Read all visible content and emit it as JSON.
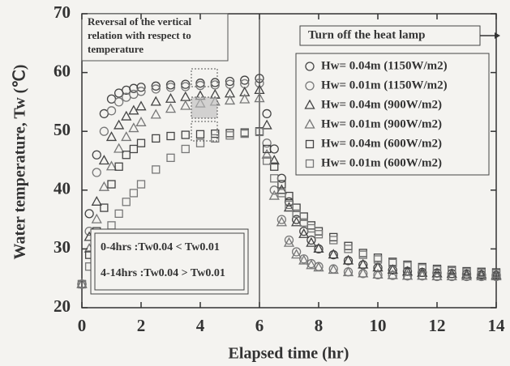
{
  "chart_data": {
    "type": "scatter",
    "xlabel": "Elapsed time (hr)",
    "ylabel": "Water temperature, Tw (℃)",
    "annotations": [
      "Reversal of the vertical",
      "relation with respect to",
      "temperature",
      "Turn off the heat lamp",
      "0-4hrs :Tw0.04 < Tw0.01",
      "4-14hrs :Tw0.04 > Tw0.01"
    ],
    "xlim": [
      0,
      14
    ],
    "xticks": [
      0,
      2,
      4,
      6,
      8,
      10,
      12,
      14
    ],
    "ylim": [
      20,
      70
    ],
    "yticks": [
      20,
      30,
      40,
      50,
      60,
      70
    ],
    "grid": false,
    "x": [
      0,
      0.25,
      0.5,
      0.75,
      1,
      1.25,
      1.5,
      1.75,
      2,
      2.5,
      3,
      3.5,
      4,
      4.5,
      5,
      5.5,
      6,
      6.25,
      6.5,
      6.75,
      7,
      7.25,
      7.5,
      7.75,
      8,
      8.5,
      9,
      9.5,
      10,
      10.5,
      11,
      11.5,
      12,
      12.5,
      13,
      13.5,
      14
    ],
    "series": [
      {
        "name": "Hw= 0.04m (1150W/m2)",
        "marker": "circle",
        "color": "#444444",
        "values": [
          24,
          36,
          46,
          53,
          55.5,
          56.5,
          57,
          57.3,
          57.5,
          57.7,
          57.9,
          58,
          58.2,
          58.3,
          58.5,
          58.7,
          59,
          53,
          47,
          42,
          38,
          35,
          33,
          31.5,
          30,
          29,
          28,
          27.3,
          26.8,
          26.4,
          26.2,
          26,
          25.9,
          25.8,
          25.7,
          25.6,
          25.5
        ]
      },
      {
        "name": "Hw= 0.01m (1150W/m2)",
        "marker": "circle",
        "color": "#777777",
        "values": [
          24,
          33,
          43,
          50,
          53.5,
          55,
          55.8,
          56.3,
          56.8,
          57.2,
          57.5,
          57.6,
          57.8,
          57.9,
          58,
          58.1,
          58.2,
          48,
          40,
          35,
          31.5,
          29.5,
          28.3,
          27.5,
          27,
          26.6,
          26.1,
          25.8,
          25.6,
          25.5,
          25.4,
          25.4,
          25.3,
          25.3,
          25.3,
          25.3,
          25.3
        ]
      },
      {
        "name": "Hw= 0.04m (900W/m2)",
        "marker": "triangle",
        "color": "#444444",
        "values": [
          24,
          32,
          38,
          45,
          49,
          51,
          52.5,
          53.5,
          54.2,
          55,
          55.5,
          55.8,
          56,
          56.2,
          56.4,
          56.6,
          57,
          51,
          45,
          40,
          37,
          34.5,
          32.5,
          31,
          30,
          29,
          28,
          27.3,
          26.8,
          26.4,
          26.1,
          25.9,
          25.8,
          25.7,
          25.6,
          25.6,
          25.5
        ]
      },
      {
        "name": "Hw= 0.01m (900W/m2)",
        "marker": "triangle",
        "color": "#777777",
        "values": [
          24,
          30,
          35,
          40.5,
          44,
          47,
          49,
          50.5,
          51.5,
          52.8,
          53.8,
          54.3,
          54.7,
          55,
          55.2,
          55.4,
          55.6,
          46,
          39,
          34.5,
          31,
          29,
          28,
          27.2,
          26.8,
          26.4,
          26,
          25.8,
          25.6,
          25.5,
          25.4,
          25.4,
          25.3,
          25.3,
          25.3,
          25.3,
          25.3
        ]
      },
      {
        "name": "Hw= 0.04m (600W/m2)",
        "marker": "square",
        "color": "#444444",
        "values": [
          24,
          29,
          33,
          37,
          41,
          44,
          46,
          47,
          48,
          48.8,
          49.2,
          49.4,
          49.5,
          49.6,
          49.7,
          49.8,
          50,
          47,
          44,
          41,
          39,
          37,
          35.5,
          34,
          33,
          32,
          30.5,
          29.3,
          28.5,
          27.8,
          27.3,
          26.9,
          26.6,
          26.4,
          26.2,
          26.1,
          26
        ]
      },
      {
        "name": "Hw= 0.01m (600W/m2)",
        "marker": "square",
        "color": "#777777",
        "values": [
          24,
          27,
          29,
          32,
          34,
          36,
          38,
          39.5,
          41,
          43.5,
          45.5,
          47,
          48,
          48.8,
          49.3,
          49.6,
          49.9,
          45,
          42,
          39.5,
          37.5,
          36,
          34.5,
          33.5,
          32.5,
          31.5,
          30,
          29,
          28.2,
          27.6,
          27.1,
          26.7,
          26.4,
          26.2,
          26,
          25.9,
          25.8
        ]
      }
    ]
  }
}
